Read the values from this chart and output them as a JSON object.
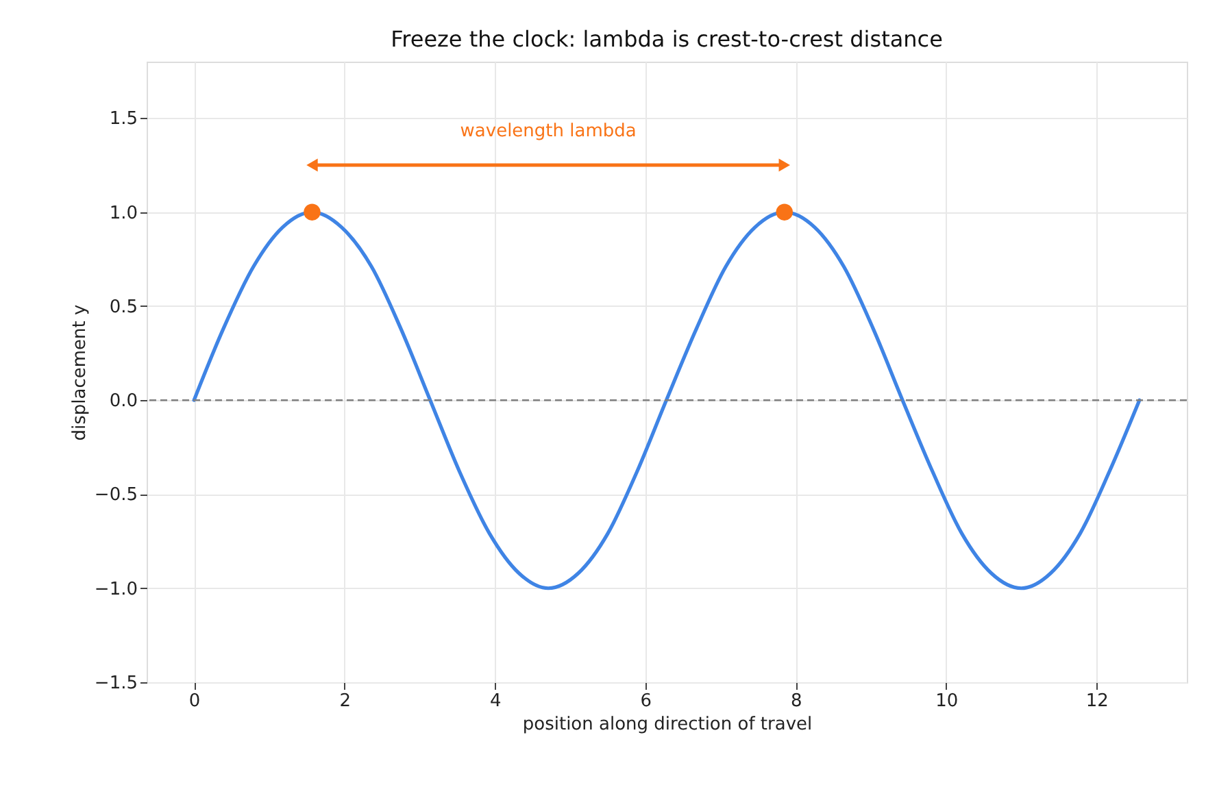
{
  "chart_data": {
    "type": "line",
    "title": "Freeze the clock: lambda is crest-to-crest distance",
    "xlabel": "position along direction of travel",
    "ylabel": "displacement y",
    "xlim": [
      -0.63,
      13.2
    ],
    "ylim": [
      -1.5,
      1.8
    ],
    "xticks": [
      0,
      2,
      4,
      6,
      8,
      10,
      12
    ],
    "yticks": [
      -1.5,
      {
        "value": -1,
        "label": "−1.0"
      },
      -0.5,
      {
        "value": 0,
        "label": "0.0"
      },
      0.5,
      {
        "value": 1,
        "label": "1.0"
      },
      1.5
    ],
    "grid": true,
    "series": [
      {
        "color": "#3f84e5",
        "marker": "none",
        "line_style": "solid",
        "x": [
          0,
          0.39,
          0.79,
          1.18,
          1.57,
          1.96,
          2.36,
          2.75,
          3.14,
          3.53,
          3.93,
          4.32,
          4.71,
          5.11,
          5.5,
          5.89,
          6.28,
          6.68,
          7.07,
          7.46,
          7.85,
          8.25,
          8.64,
          9.03,
          9.42,
          9.82,
          10.21,
          10.6,
          11.0,
          11.39,
          11.78,
          12.17,
          12.57
        ],
        "values": [
          0,
          0.38,
          0.71,
          0.92,
          1,
          0.92,
          0.71,
          0.38,
          0,
          -0.38,
          -0.71,
          -0.92,
          -1,
          -0.92,
          -0.71,
          -0.38,
          0,
          0.38,
          0.71,
          0.92,
          1,
          0.92,
          0.71,
          0.38,
          0,
          -0.38,
          -0.71,
          -0.92,
          -1,
          -0.92,
          -0.71,
          -0.38,
          0
        ]
      },
      {
        "type": "scatter",
        "color": "#f97316",
        "marker": "circle",
        "x": [
          1.57,
          7.85
        ],
        "values": [
          1,
          1
        ]
      },
      {
        "type": "line",
        "color": "#f97316",
        "marker": "triangle",
        "line_style": "solid",
        "x": [
          1.57,
          7.85
        ],
        "values": [
          1.25,
          1.25
        ]
      }
    ],
    "ref_lines": [
      {
        "axis": "y",
        "value": 0,
        "color": "#808080",
        "line_style": "dashed"
      }
    ],
    "annotations": [
      "wavelength lambda"
    ]
  }
}
